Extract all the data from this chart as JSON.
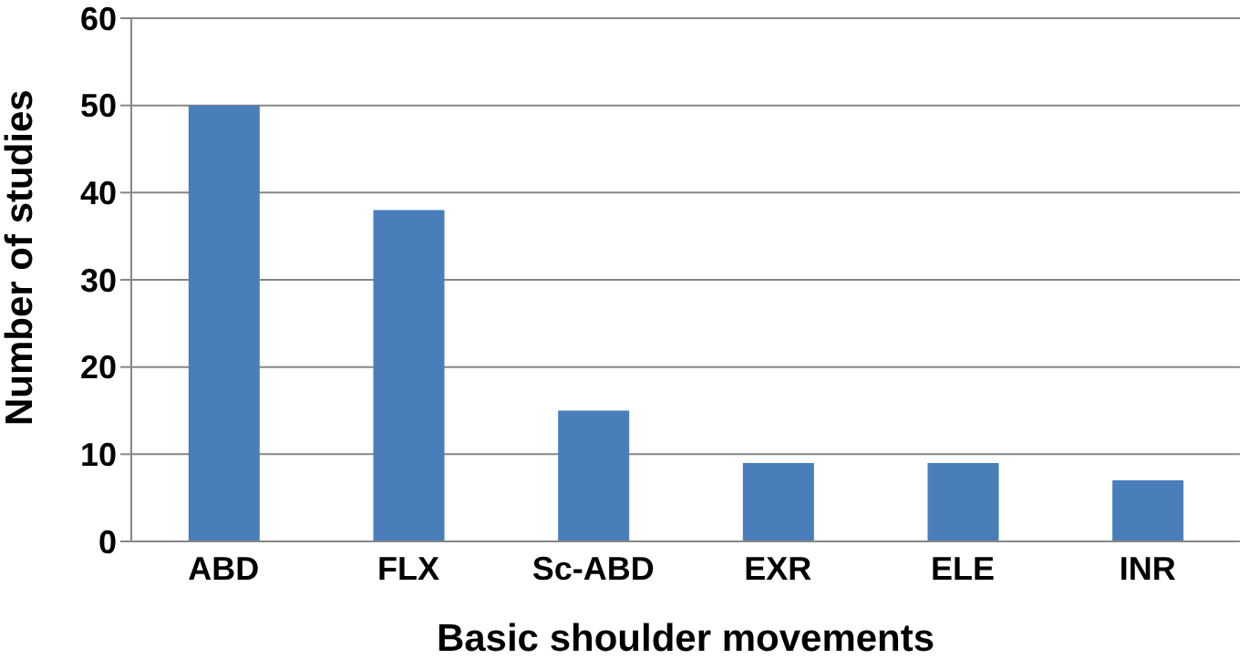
{
  "chart_data": {
    "type": "bar",
    "xlabel": "Basic shoulder movements",
    "ylabel": "Number of studies",
    "categories": [
      "ABD",
      "FLX",
      "Sc-ABD",
      "EXR",
      "ELE",
      "INR"
    ],
    "values": [
      50,
      38,
      15,
      9,
      9,
      7
    ],
    "color": "#4a7ebb",
    "ylim": [
      0,
      60
    ],
    "yticks": [
      0,
      10,
      20,
      30,
      40,
      50,
      60
    ],
    "grid": "y"
  }
}
